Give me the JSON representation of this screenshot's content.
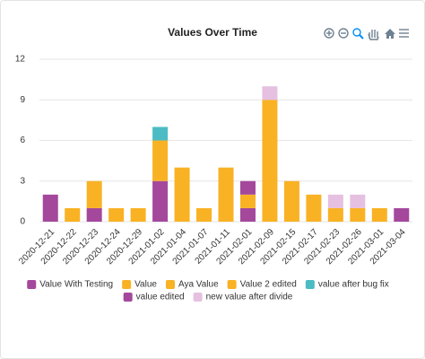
{
  "chart_data": {
    "type": "stacked-bar",
    "title": "Values Over Time",
    "categories": [
      "2020-12-21",
      "2020-12-22",
      "2020-12-23",
      "2020-12-24",
      "2020-12-29",
      "2021-01-02",
      "2021-01-04",
      "2021-01-07",
      "2021-01-11",
      "2021-02-01",
      "2021-02-09",
      "2021-02-15",
      "2021-02-17",
      "2021-02-23",
      "2021-02-26",
      "2021-03-01",
      "2021-03-04"
    ],
    "series": [
      {
        "name": "Value With Testing",
        "color": "#a4489c",
        "values": [
          2,
          null,
          1,
          null,
          null,
          3,
          null,
          null,
          null,
          1,
          null,
          null,
          null,
          null,
          null,
          null,
          null
        ]
      },
      {
        "name": "Value",
        "color": "#f9b224",
        "values": [
          null,
          1,
          2,
          1,
          1,
          3,
          4,
          1,
          4,
          1,
          9,
          3,
          2,
          1,
          1,
          1,
          null
        ]
      },
      {
        "name": "Aya Value",
        "color": "#f9b224",
        "values": [
          null,
          null,
          null,
          null,
          null,
          null,
          null,
          null,
          null,
          null,
          null,
          null,
          null,
          null,
          null,
          null,
          null
        ]
      },
      {
        "name": "Value 2 edited",
        "color": "#f9b224",
        "values": [
          null,
          null,
          null,
          null,
          null,
          null,
          null,
          null,
          null,
          null,
          null,
          null,
          null,
          null,
          null,
          null,
          null
        ]
      },
      {
        "name": "value after bug fix",
        "color": "#4cbcc4",
        "values": [
          null,
          null,
          null,
          null,
          null,
          1,
          null,
          null,
          null,
          null,
          null,
          null,
          null,
          null,
          null,
          null,
          null
        ]
      },
      {
        "name": "value edited",
        "color": "#a4489c",
        "values": [
          null,
          null,
          null,
          null,
          null,
          null,
          null,
          null,
          null,
          1,
          null,
          null,
          null,
          null,
          null,
          null,
          1
        ]
      },
      {
        "name": "new value after divide",
        "color": "#e6c0e0",
        "values": [
          null,
          null,
          null,
          null,
          null,
          null,
          null,
          null,
          null,
          null,
          1,
          null,
          null,
          1,
          1,
          null,
          null
        ]
      }
    ],
    "ylim": [
      0,
      12
    ],
    "yticks": [
      0,
      3,
      6,
      9,
      12
    ],
    "grid": true
  }
}
